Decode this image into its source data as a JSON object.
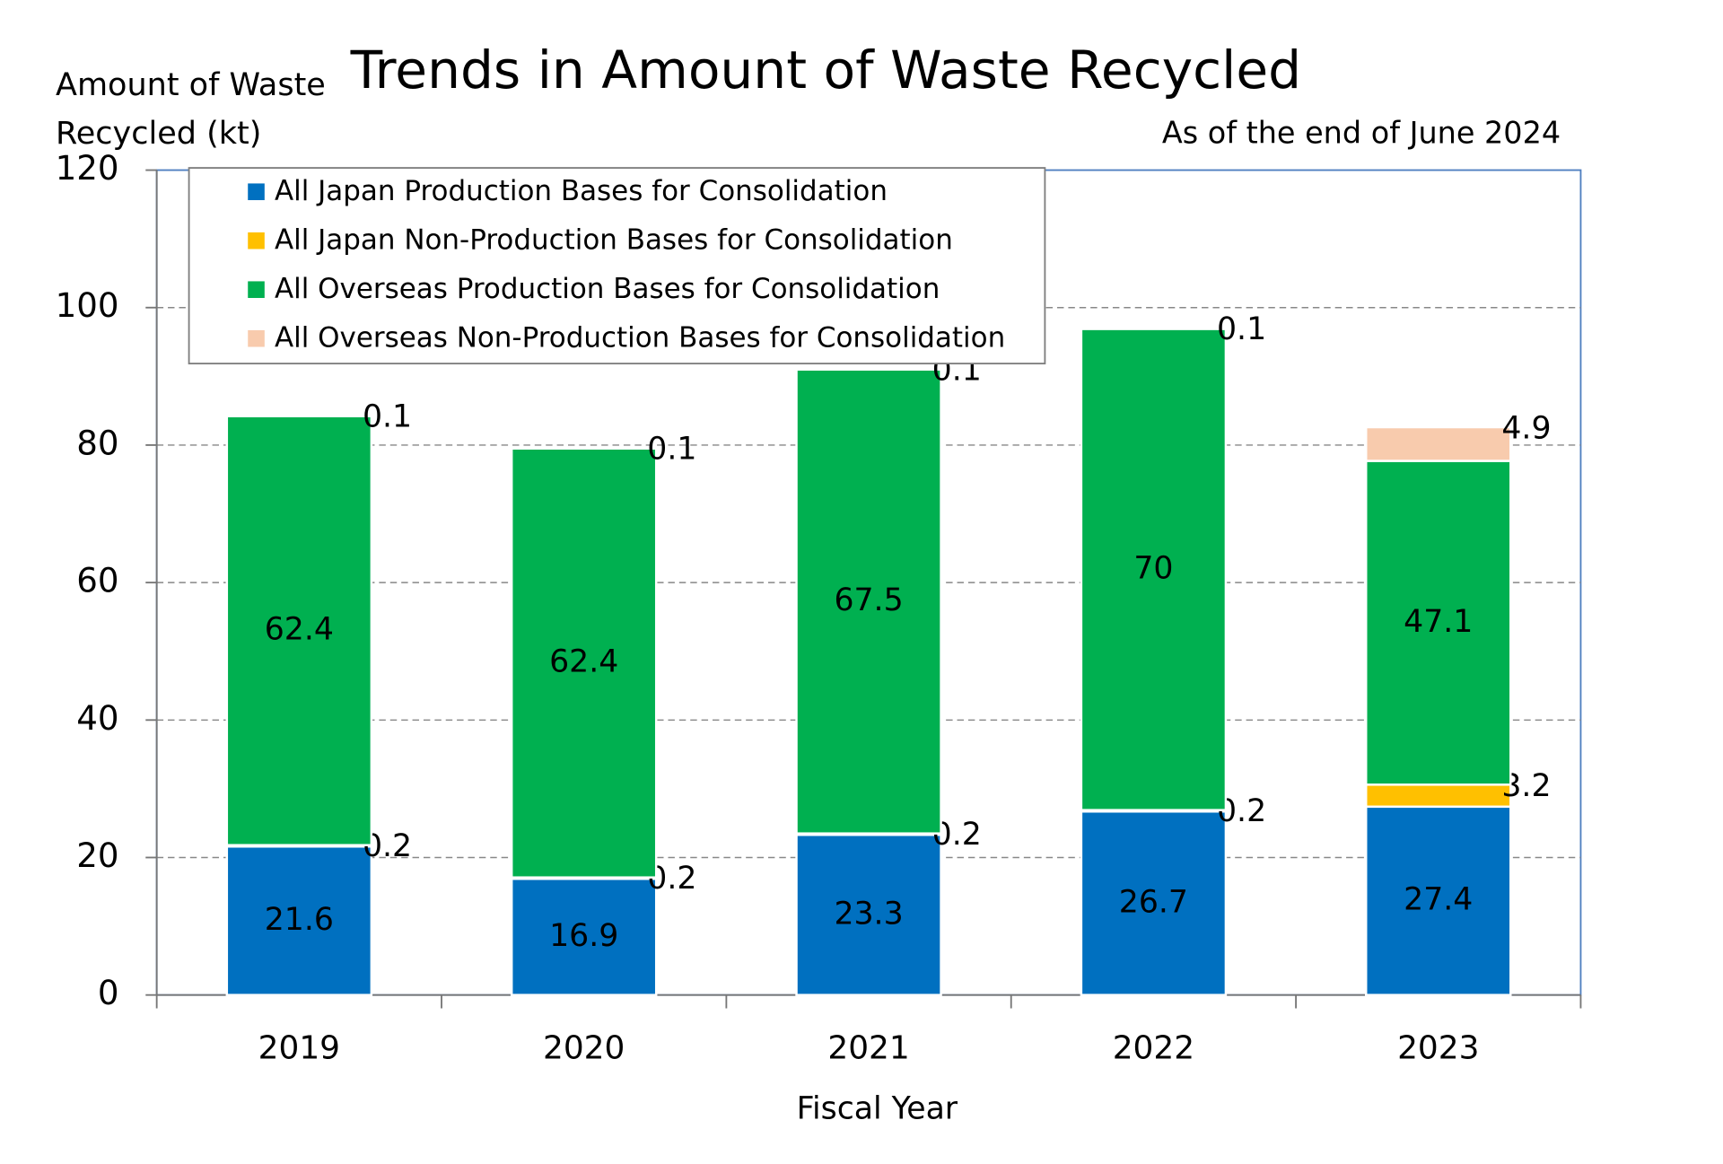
{
  "chart_data": {
    "type": "stacked_bar",
    "title": "Trends in Amount of Waste Recycled",
    "subtitle": "As of the end of June 2024",
    "y_label": "Amount of Waste Recycled (kt)",
    "x_label": "Fiscal Year",
    "categories": [
      "2019",
      "2020",
      "2021",
      "2022",
      "2023"
    ],
    "series": [
      {
        "name": "All Japan Production Bases for Consolidation",
        "color": "#0070c0",
        "values": [
          21.6,
          16.9,
          23.3,
          26.7,
          27.4
        ]
      },
      {
        "name": "All Japan Non-Production Bases for Consolidation",
        "color": "#ffc000",
        "values": [
          0.2,
          0.2,
          0.2,
          0.2,
          3.2
        ]
      },
      {
        "name": "All Overseas Production Bases for Consolidation",
        "color": "#00b050",
        "values": [
          62.4,
          62.4,
          67.5,
          70,
          47.1
        ]
      },
      {
        "name": "All Overseas Non-Production Bases for Consolidation",
        "color": "#f8cbad",
        "values": [
          0.1,
          0.1,
          0.1,
          0.1,
          4.9
        ]
      }
    ],
    "ylim": [
      0,
      120
    ],
    "yticks": [
      0,
      20,
      40,
      60,
      80,
      100,
      120
    ],
    "grid": true,
    "legend": "top-left"
  }
}
